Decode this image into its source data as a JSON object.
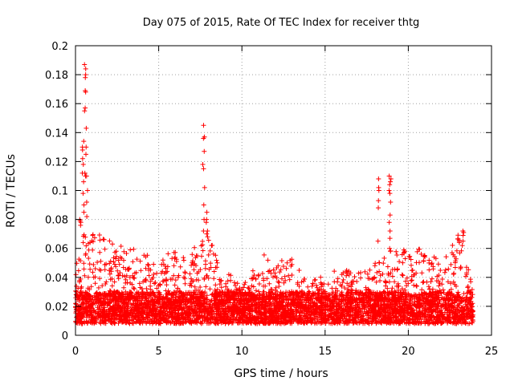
{
  "chart_data": {
    "type": "scatter",
    "title": "Day 075 of 2015, Rate Of TEC Index for receiver thtg",
    "xlabel": "GPS time / hours",
    "ylabel": "ROTI / TECUs",
    "xlim": [
      0,
      25
    ],
    "ylim": [
      0,
      0.2
    ],
    "x_ticks": [
      0,
      5,
      10,
      15,
      20,
      25
    ],
    "x_tick_labels": [
      "0",
      "5",
      "10",
      "15",
      "20",
      "25"
    ],
    "y_ticks": [
      0,
      0.02,
      0.04,
      0.06,
      0.08,
      0.1,
      0.12,
      0.14,
      0.16,
      0.18,
      0.2
    ],
    "y_tick_labels": [
      "0",
      "0.02",
      "0.04",
      "0.06",
      "0.08",
      "0.1",
      "0.12",
      "0.14",
      "0.16",
      "0.18",
      "0.2"
    ],
    "grid": true,
    "marker": "+",
    "color": "#ff0000",
    "time_range": [
      0,
      23.9
    ],
    "baseline": {
      "low": 0.008,
      "typical_high": 0.03
    },
    "activity_envelope": [
      {
        "x": 0,
        "max": 0.05
      },
      {
        "x": 0.5,
        "max": 0.07
      },
      {
        "x": 1.5,
        "max": 0.07
      },
      {
        "x": 3,
        "max": 0.06
      },
      {
        "x": 4,
        "max": 0.06
      },
      {
        "x": 5,
        "max": 0.045
      },
      {
        "x": 5.5,
        "max": 0.06
      },
      {
        "x": 6.5,
        "max": 0.055
      },
      {
        "x": 7,
        "max": 0.06
      },
      {
        "x": 8,
        "max": 0.07
      },
      {
        "x": 9,
        "max": 0.045
      },
      {
        "x": 10,
        "max": 0.035
      },
      {
        "x": 11,
        "max": 0.06
      },
      {
        "x": 12,
        "max": 0.05
      },
      {
        "x": 13,
        "max": 0.055
      },
      {
        "x": 14,
        "max": 0.035
      },
      {
        "x": 15,
        "max": 0.045
      },
      {
        "x": 16.5,
        "max": 0.045
      },
      {
        "x": 18,
        "max": 0.05
      },
      {
        "x": 19,
        "max": 0.06
      },
      {
        "x": 20,
        "max": 0.06
      },
      {
        "x": 21,
        "max": 0.06
      },
      {
        "x": 22,
        "max": 0.05
      },
      {
        "x": 23,
        "max": 0.07
      },
      {
        "x": 23.9,
        "max": 0.035
      }
    ],
    "spikes": [
      {
        "x": 0.3,
        "values": [
          0.076,
          0.078,
          0.08,
          0.079
        ]
      },
      {
        "x": 0.45,
        "values": [
          0.085,
          0.09,
          0.098,
          0.106,
          0.112,
          0.118,
          0.122,
          0.128,
          0.13,
          0.134
        ]
      },
      {
        "x": 0.6,
        "values": [
          0.11,
          0.112,
          0.125,
          0.13,
          0.143,
          0.155,
          0.157,
          0.168,
          0.169,
          0.178,
          0.18,
          0.184,
          0.187
        ]
      },
      {
        "x": 0.7,
        "values": [
          0.082,
          0.092,
          0.1,
          0.11
        ]
      },
      {
        "x": 7.7,
        "values": [
          0.072,
          0.08,
          0.09,
          0.102,
          0.115,
          0.118,
          0.127,
          0.136,
          0.137,
          0.145
        ]
      },
      {
        "x": 7.9,
        "values": [
          0.068,
          0.07,
          0.072,
          0.078,
          0.08,
          0.085
        ]
      },
      {
        "x": 18.2,
        "values": [
          0.065,
          0.088,
          0.093,
          0.1,
          0.102,
          0.108
        ]
      },
      {
        "x": 18.9,
        "values": [
          0.06,
          0.067,
          0.072,
          0.078,
          0.083,
          0.092,
          0.098,
          0.1,
          0.104,
          0.106,
          0.108,
          0.11
        ]
      },
      {
        "x": 23.3,
        "values": [
          0.062,
          0.065,
          0.069,
          0.071,
          0.072
        ]
      }
    ]
  }
}
